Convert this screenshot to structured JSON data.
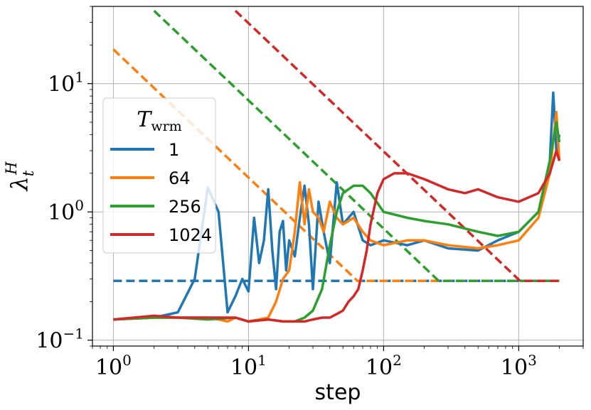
{
  "chart_data": {
    "type": "line",
    "xscale": "log",
    "yscale": "log",
    "xlim": [
      0.7,
      3000
    ],
    "ylim": [
      0.09,
      40
    ],
    "grid": true,
    "xlabel": "step",
    "ylabel": "λ_t^H",
    "x_ticks": [
      1,
      10,
      100,
      1000
    ],
    "x_tick_labels": [
      "10^0",
      "10^1",
      "10^2",
      "10^3"
    ],
    "y_ticks": [
      0.1,
      1,
      10
    ],
    "y_tick_labels": [
      "10^−1",
      "10^0",
      "10^1"
    ],
    "legend": {
      "title": "T_wrm",
      "location": "center-left",
      "entries": [
        "1",
        "64",
        "256",
        "1024"
      ]
    },
    "colors": {
      "1": "#1f77b4",
      "64": "#ff7f0e",
      "256": "#2ca02c",
      "1024": "#d62728"
    },
    "series": [
      {
        "name": "1",
        "color": "#1f77b4",
        "x": [
          1,
          2,
          3,
          4,
          5,
          6,
          7,
          8,
          9,
          10,
          11,
          12,
          13,
          14,
          15,
          16,
          17,
          18,
          19,
          20,
          22,
          24,
          26,
          28,
          30,
          33,
          36,
          40,
          45,
          50,
          60,
          70,
          80,
          100,
          150,
          200,
          300,
          500,
          700,
          1000,
          1400,
          1700,
          1800,
          1900,
          2000
        ],
        "y": [
          0.145,
          0.15,
          0.165,
          0.3,
          1.55,
          1.0,
          0.165,
          0.22,
          0.3,
          0.24,
          0.9,
          0.4,
          0.6,
          1.5,
          0.5,
          0.25,
          0.7,
          0.85,
          0.35,
          0.6,
          0.45,
          0.9,
          1.6,
          0.8,
          0.25,
          1.2,
          0.7,
          0.4,
          1.7,
          0.8,
          1.0,
          0.6,
          0.55,
          0.6,
          0.55,
          0.6,
          0.52,
          0.5,
          0.6,
          0.7,
          1.0,
          2.5,
          8.5,
          3.0,
          4.0
        ]
      },
      {
        "name": "64",
        "color": "#ff7f0e",
        "x": [
          1,
          2,
          3,
          4,
          5,
          6,
          7,
          8,
          10,
          12,
          14,
          16,
          18,
          20,
          22,
          24,
          26,
          28,
          30,
          33,
          36,
          40,
          45,
          50,
          60,
          70,
          80,
          100,
          150,
          200,
          300,
          500,
          700,
          1000,
          1400,
          1700,
          1900,
          2000
        ],
        "y": [
          0.145,
          0.15,
          0.15,
          0.15,
          0.15,
          0.145,
          0.14,
          0.15,
          0.14,
          0.145,
          0.15,
          0.2,
          0.3,
          0.35,
          0.7,
          1.7,
          0.8,
          1.5,
          1.0,
          0.9,
          0.7,
          1.2,
          0.9,
          0.8,
          0.9,
          0.7,
          0.6,
          0.55,
          0.6,
          0.6,
          0.55,
          0.52,
          0.55,
          0.6,
          0.9,
          2.0,
          6.0,
          2.5
        ]
      },
      {
        "name": "256",
        "color": "#2ca02c",
        "x": [
          1,
          2,
          3,
          5,
          8,
          10,
          14,
          18,
          22,
          26,
          30,
          35,
          40,
          45,
          50,
          60,
          70,
          80,
          100,
          150,
          200,
          300,
          500,
          700,
          1000,
          1400,
          1700,
          1900,
          2000
        ],
        "y": [
          0.145,
          0.15,
          0.15,
          0.145,
          0.15,
          0.14,
          0.145,
          0.14,
          0.14,
          0.15,
          0.17,
          0.25,
          0.55,
          1.0,
          1.4,
          1.6,
          1.6,
          1.4,
          1.0,
          0.9,
          0.85,
          0.8,
          0.7,
          0.65,
          0.7,
          1.0,
          2.5,
          5.0,
          3.5
        ]
      },
      {
        "name": "1024",
        "color": "#d62728",
        "x": [
          1,
          2,
          3,
          5,
          8,
          10,
          14,
          18,
          22,
          26,
          30,
          35,
          40,
          45,
          50,
          55,
          60,
          65,
          70,
          75,
          80,
          90,
          100,
          120,
          150,
          200,
          300,
          400,
          500,
          700,
          1000,
          1400,
          1700,
          1900,
          2000
        ],
        "y": [
          0.145,
          0.155,
          0.15,
          0.15,
          0.15,
          0.14,
          0.145,
          0.14,
          0.14,
          0.14,
          0.145,
          0.15,
          0.15,
          0.16,
          0.17,
          0.2,
          0.22,
          0.25,
          0.35,
          0.5,
          0.8,
          1.4,
          1.8,
          2.0,
          2.0,
          1.8,
          1.5,
          1.4,
          1.5,
          1.3,
          1.2,
          1.4,
          2.0,
          3.0,
          2.5
        ]
      }
    ],
    "reference_lines": [
      {
        "series": "1",
        "color": "#1f77b4",
        "x": [
          1,
          2000
        ],
        "y": [
          0.29,
          0.29
        ]
      },
      {
        "series": "64",
        "color": "#ff7f0e",
        "x": [
          1,
          64,
          2000
        ],
        "y": [
          18.5,
          0.29,
          0.29
        ]
      },
      {
        "series": "256",
        "color": "#2ca02c",
        "x": [
          2,
          256,
          2000
        ],
        "y": [
          37,
          0.29,
          0.29
        ]
      },
      {
        "series": "1024",
        "color": "#d62728",
        "x": [
          8,
          1024,
          2000
        ],
        "y": [
          37,
          0.29,
          0.29
        ]
      }
    ]
  }
}
